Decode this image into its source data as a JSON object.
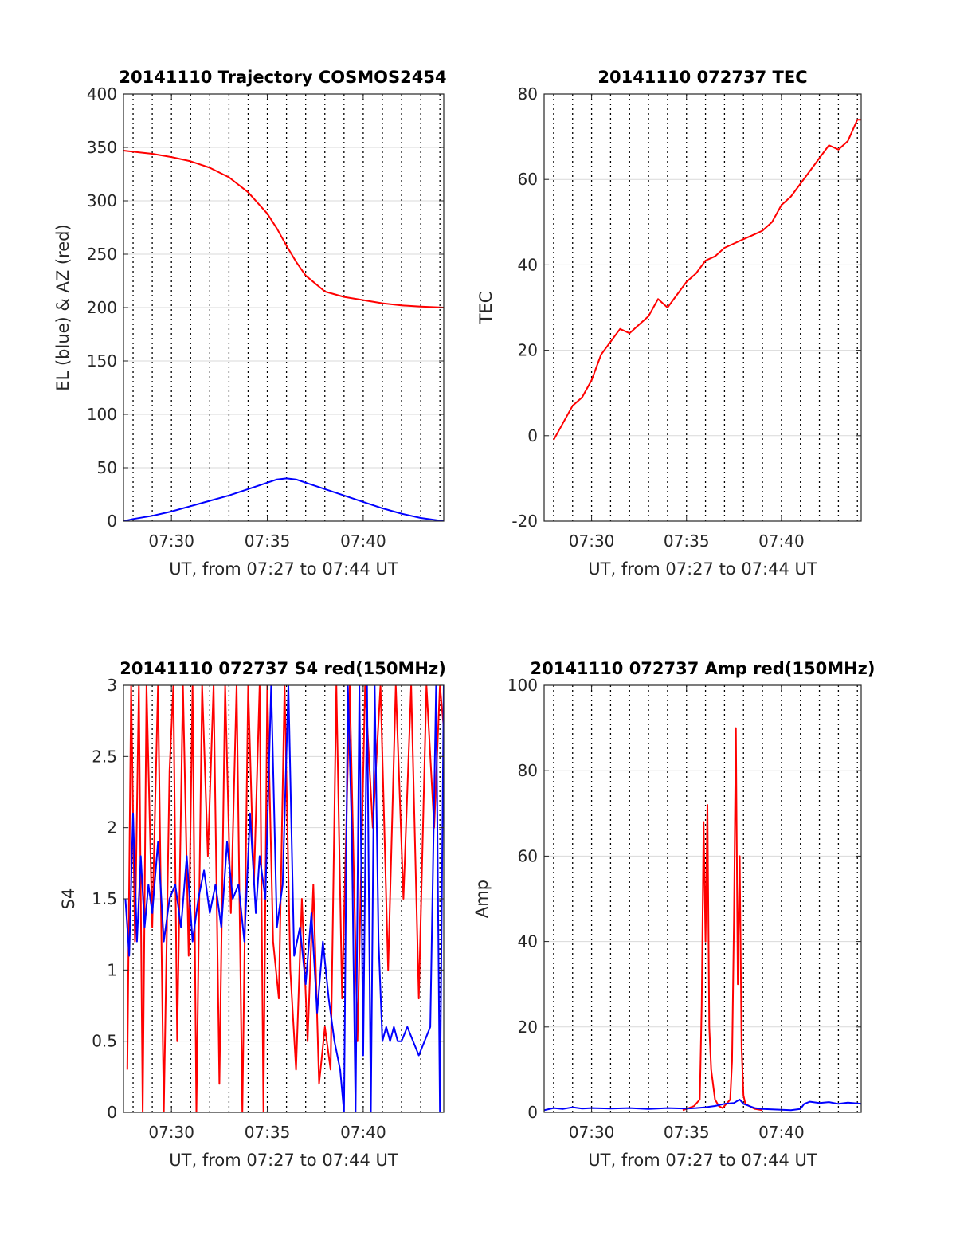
{
  "colors": {
    "az": "#ff0000",
    "el": "#0000ff",
    "tec": "#ff0000",
    "red": "#ff0000",
    "blue": "#0000ff",
    "grid": "#d9d9d9",
    "axis": "#262626"
  },
  "chart_data": [
    {
      "id": "trajectory",
      "type": "line",
      "title": "20141110 Trajectory COSMOS2454",
      "xlabel": "UT, from 07:27 to 07:44 UT",
      "ylabel": "EL (blue) & AZ (red)",
      "xlim": [
        27.5,
        44.2
      ],
      "ylim": [
        0,
        400
      ],
      "x_ticks": [
        30,
        35,
        40
      ],
      "x_tick_labels": [
        "07:30",
        "07:35",
        "07:40"
      ],
      "y_ticks": [
        0,
        50,
        100,
        150,
        200,
        250,
        300,
        350,
        400
      ],
      "y_tick_labels": [
        "0",
        "50",
        "100",
        "150",
        "200",
        "250",
        "300",
        "350",
        "400"
      ],
      "dotted_x_lines": [
        28,
        29,
        30,
        31,
        32,
        33,
        34,
        35,
        36,
        37,
        38,
        39,
        40,
        41,
        42,
        43,
        44
      ],
      "series": [
        {
          "color": "red",
          "x": [
            27.5,
            28,
            29,
            30,
            31,
            32,
            33,
            34,
            35,
            35.5,
            36,
            36.5,
            37,
            38,
            39,
            40,
            41,
            42,
            43,
            44.2
          ],
          "y": [
            347,
            346,
            344,
            341,
            337,
            331,
            322,
            308,
            288,
            274,
            258,
            243,
            230,
            215,
            210,
            207,
            204,
            202,
            201,
            200
          ]
        },
        {
          "color": "blue",
          "x": [
            27.5,
            28,
            29,
            30,
            31,
            32,
            33,
            34,
            35,
            35.5,
            36,
            36.5,
            37,
            38,
            39,
            40,
            41,
            42,
            43,
            44.2
          ],
          "y": [
            0,
            2,
            5,
            9,
            14,
            19,
            24,
            30,
            36,
            39,
            40,
            39,
            36,
            30,
            24,
            18,
            12,
            7,
            3,
            0
          ]
        }
      ]
    },
    {
      "id": "tec",
      "type": "line",
      "title": "20141110 072737 TEC",
      "xlabel": "UT, from 07:27 to 07:44 UT",
      "ylabel": "TEC",
      "xlim": [
        27.5,
        44.2
      ],
      "ylim": [
        -20,
        80
      ],
      "x_ticks": [
        30,
        35,
        40
      ],
      "x_tick_labels": [
        "07:30",
        "07:35",
        "07:40"
      ],
      "y_ticks": [
        -20,
        0,
        20,
        40,
        60,
        80
      ],
      "y_tick_labels": [
        "-20",
        "0",
        "20",
        "40",
        "60",
        "80"
      ],
      "dotted_x_lines": [
        28,
        29,
        30,
        31,
        32,
        33,
        34,
        35,
        36,
        37,
        38,
        39,
        40,
        41,
        42,
        43,
        44
      ],
      "series": [
        {
          "color": "red",
          "x": [
            28,
            28.5,
            29,
            29.5,
            30,
            30.5,
            31,
            31.5,
            32,
            32.5,
            33,
            33.5,
            34,
            34.5,
            35,
            35.5,
            36,
            36.5,
            37,
            37.5,
            38,
            38.5,
            39,
            39.5,
            40,
            40.5,
            41,
            41.5,
            42,
            42.5,
            43,
            43.5,
            44,
            44.2
          ],
          "y": [
            -1,
            3,
            7,
            9,
            13,
            19,
            22,
            25,
            24,
            26,
            28,
            32,
            30,
            33,
            36,
            38,
            41,
            42,
            44,
            45,
            46,
            47,
            48,
            50,
            54,
            56,
            59,
            62,
            65,
            68,
            67,
            69,
            74,
            74
          ]
        }
      ]
    },
    {
      "id": "s4",
      "type": "line",
      "title": "20141110 072737 S4 red(150MHz)",
      "xlabel": "UT, from 07:27 to 07:44 UT",
      "ylabel": "S4",
      "xlim": [
        27.5,
        44.2
      ],
      "ylim": [
        0,
        3
      ],
      "x_ticks": [
        30,
        35,
        40
      ],
      "x_tick_labels": [
        "07:30",
        "07:35",
        "07:40"
      ],
      "y_ticks": [
        0,
        0.5,
        1,
        1.5,
        2,
        2.5,
        3
      ],
      "y_tick_labels": [
        "0",
        "0.5",
        "1",
        "1.5",
        "2",
        "2.5",
        "3"
      ],
      "dotted_x_lines": [
        28,
        29,
        30,
        31,
        32,
        33,
        34,
        35,
        36,
        37,
        38,
        39,
        40,
        41,
        42,
        43,
        44
      ],
      "series": [
        {
          "color": "red",
          "x": [
            27.7,
            27.9,
            28.1,
            28.3,
            28.5,
            28.7,
            29.0,
            29.3,
            29.6,
            29.9,
            30.1,
            30.3,
            30.6,
            30.9,
            31.1,
            31.3,
            31.6,
            31.9,
            32.2,
            32.5,
            32.8,
            33.1,
            33.4,
            33.7,
            34.0,
            34.3,
            34.6,
            34.8,
            35.0,
            35.3,
            35.6,
            35.9,
            36.2,
            36.5,
            36.8,
            37.1,
            37.4,
            37.7,
            38.0,
            38.3,
            38.6,
            38.9,
            39.3,
            39.7,
            40.1,
            40.5,
            40.9,
            41.3,
            41.7,
            42.1,
            42.5,
            42.9,
            43.3,
            43.7,
            44.0,
            44.2
          ],
          "y": [
            0.3,
            3,
            1.2,
            3,
            0,
            3,
            1.3,
            3,
            0,
            2.4,
            3,
            0.5,
            3,
            1.1,
            3,
            0,
            3,
            1.8,
            3,
            0.2,
            3,
            1.4,
            3,
            0,
            3,
            1.6,
            3,
            0,
            3,
            1.2,
            0.8,
            3,
            1.0,
            0.3,
            1.5,
            0.5,
            1.6,
            0.2,
            0.6,
            0.3,
            3,
            0.8,
            3,
            0.5,
            3,
            2.0,
            3,
            1.0,
            3,
            1.5,
            3,
            0.8,
            3,
            2.0,
            3,
            2.7
          ]
        },
        {
          "color": "blue",
          "x": [
            27.6,
            27.8,
            28.0,
            28.2,
            28.4,
            28.6,
            28.8,
            29.0,
            29.3,
            29.6,
            29.9,
            30.2,
            30.5,
            30.8,
            31.1,
            31.4,
            31.7,
            32.0,
            32.3,
            32.6,
            32.9,
            33.2,
            33.5,
            33.8,
            34.1,
            34.4,
            34.6,
            34.9,
            35.2,
            35.5,
            35.8,
            36.1,
            36.4,
            36.7,
            37.0,
            37.3,
            37.6,
            37.9,
            38.2,
            38.5,
            38.8,
            39.0,
            39.2,
            39.4,
            39.6,
            39.8,
            40.0,
            40.2,
            40.4,
            40.6,
            40.8,
            41.0,
            41.2,
            41.4,
            41.6,
            41.8,
            42.0,
            42.3,
            42.6,
            42.9,
            43.2,
            43.5,
            43.8,
            44.0,
            44.2
          ],
          "y": [
            1.5,
            1.1,
            2.1,
            1.2,
            1.8,
            1.3,
            1.6,
            1.4,
            1.9,
            1.2,
            1.5,
            1.6,
            1.3,
            1.8,
            1.2,
            1.5,
            1.7,
            1.4,
            1.6,
            1.3,
            1.9,
            1.5,
            1.6,
            1.2,
            2.1,
            1.4,
            1.8,
            1.5,
            3,
            1.3,
            1.6,
            3,
            1.1,
            1.3,
            0.9,
            1.4,
            0.7,
            1.2,
            0.8,
            0.5,
            0.3,
            0,
            3,
            2.0,
            0,
            3,
            0.4,
            3,
            0,
            3,
            1.2,
            0.5,
            0.6,
            0.5,
            0.6,
            0.5,
            0.5,
            0.6,
            0.5,
            0.4,
            0.5,
            0.6,
            3,
            0,
            3
          ]
        }
      ]
    },
    {
      "id": "amp",
      "type": "line",
      "title": "20141110 072737 Amp red(150MHz)",
      "xlabel": "UT, from 07:27 to 07:44 UT",
      "ylabel": "Amp",
      "xlim": [
        27.5,
        44.2
      ],
      "ylim": [
        0,
        100
      ],
      "x_ticks": [
        30,
        35,
        40
      ],
      "x_tick_labels": [
        "07:30",
        "07:35",
        "07:40"
      ],
      "y_ticks": [
        0,
        20,
        40,
        60,
        80,
        100
      ],
      "y_tick_labels": [
        "0",
        "20",
        "40",
        "60",
        "80",
        "100"
      ],
      "dotted_x_lines": [
        28,
        29,
        30,
        31,
        32,
        33,
        34,
        35,
        36,
        37,
        38,
        39,
        40,
        41,
        42,
        43,
        44
      ],
      "series": [
        {
          "color": "red",
          "x": [
            34.8,
            35.0,
            35.4,
            35.7,
            35.8,
            35.9,
            36.0,
            36.1,
            36.2,
            36.3,
            36.5,
            36.7,
            36.9,
            37.1,
            37.3,
            37.4,
            37.5,
            37.6,
            37.7,
            37.8,
            37.9,
            38.0,
            38.1,
            38.3,
            38.6,
            39.0
          ],
          "y": [
            0.5,
            0.8,
            1.5,
            3,
            25,
            68,
            40,
            72,
            20,
            10,
            3,
            1.5,
            1,
            2,
            3,
            12,
            45,
            90,
            30,
            60,
            15,
            4,
            2,
            1.5,
            0.8,
            0.5
          ]
        },
        {
          "color": "blue",
          "x": [
            27.5,
            28.0,
            28.5,
            29.0,
            29.5,
            30.0,
            31.0,
            32.0,
            33.0,
            34.0,
            35.0,
            35.5,
            36.0,
            36.5,
            37.0,
            37.5,
            37.8,
            38.0,
            38.3,
            38.6,
            39.0,
            40.0,
            40.5,
            41.0,
            41.2,
            41.5,
            42.0,
            42.5,
            43.0,
            43.5,
            44.0,
            44.2
          ],
          "y": [
            0.5,
            1,
            0.8,
            1.2,
            0.9,
            1,
            0.9,
            1,
            0.8,
            1,
            0.9,
            1,
            1.2,
            1.5,
            2,
            2.2,
            3,
            2,
            1.5,
            1,
            0.8,
            0.6,
            0.5,
            0.8,
            2,
            2.5,
            2.2,
            2.4,
            2.0,
            2.3,
            2.1,
            2.0
          ]
        }
      ]
    }
  ]
}
